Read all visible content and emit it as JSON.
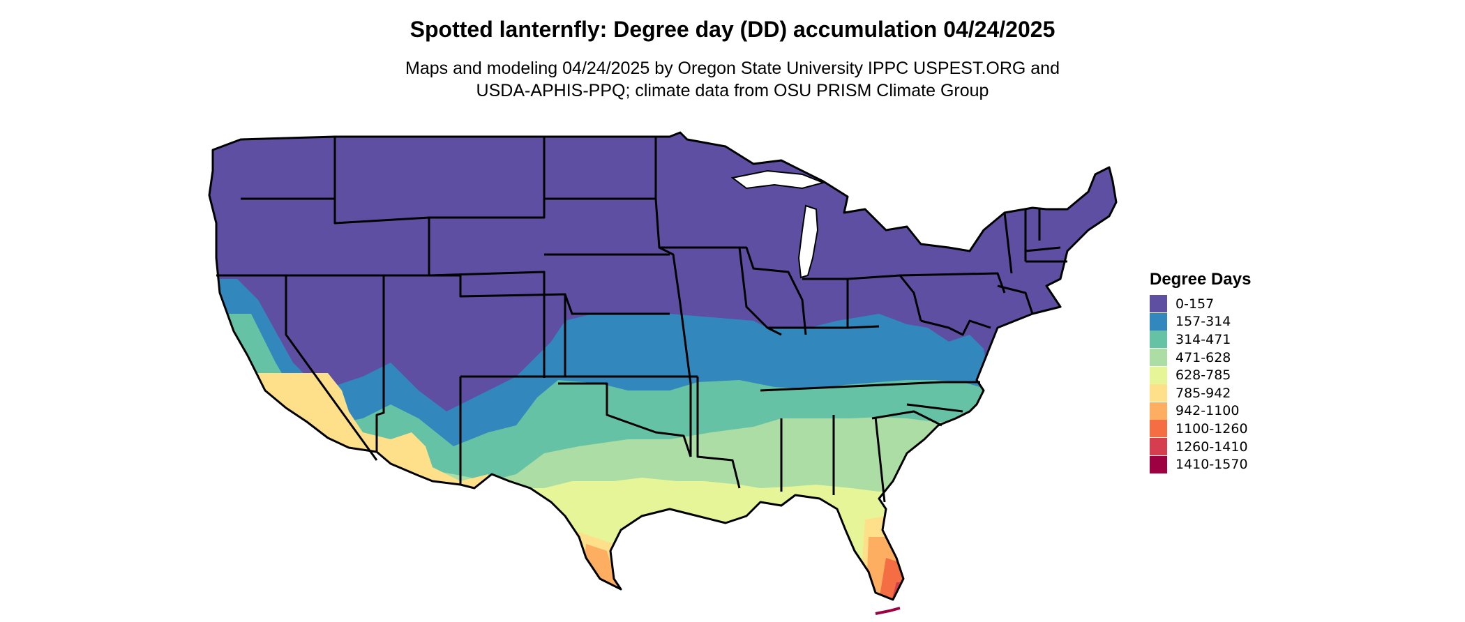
{
  "header": {
    "title": "Spotted lanternfly: Degree day (DD) accumulation 04/24/2025",
    "subtitle_line1": "Maps and modeling 04/24/2025 by Oregon State University IPPC USPEST.ORG and",
    "subtitle_line2": "USDA-APHIS-PPQ; climate data from OSU PRISM Climate Group"
  },
  "legend": {
    "title": "Degree Days",
    "items": [
      {
        "label": "0-157",
        "color": "#5e4fa2"
      },
      {
        "label": "157-314",
        "color": "#3288bd"
      },
      {
        "label": "314-471",
        "color": "#66c2a5"
      },
      {
        "label": "471-628",
        "color": "#abdda4"
      },
      {
        "label": "628-785",
        "color": "#e6f598"
      },
      {
        "label": "785-942",
        "color": "#fee08b"
      },
      {
        "label": "942-1100",
        "color": "#fdae61"
      },
      {
        "label": "1100-1260",
        "color": "#f46d43"
      },
      {
        "label": "1260-1410",
        "color": "#d53e4f"
      },
      {
        "label": "1410-1570",
        "color": "#9e0142"
      }
    ]
  }
}
